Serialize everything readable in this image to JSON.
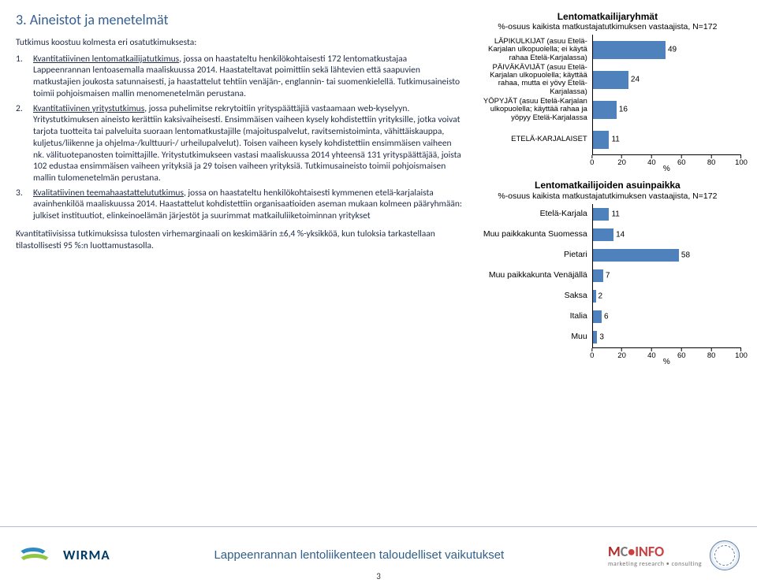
{
  "heading": "3. Aineistot ja menetelmät",
  "intro": "Tutkimus koostuu kolmesta eri osatutkimuksesta:",
  "items": [
    {
      "num": "1.",
      "title": "Kvantitatiivinen lentomatkailijatutkimus",
      "body": ", jossa on haastateltu henkilökohtaisesti 172 lentomatkustajaa Lappeenrannan lentoasemalla maaliskuussa 2014. Haastateltavat poimittiin sekä lähtevien että saapuvien matkustajien joukosta satunnaisesti, ja haastattelut tehtiin venäjän-, englannin- tai suomenkielellä. Tutkimusaineisto toimii pohjoismaisen mallin menomenetelmän perustana."
    },
    {
      "num": "2.",
      "title": "Kvantitatiivinen yritystutkimus",
      "body": ", jossa puhelimitse rekrytoitiin yrityspäättäjiä vastaamaan web-kyselyyn. Yritystutkimuksen aineisto kerättiin kaksivaiheisesti. Ensimmäisen vaiheen kysely kohdistettiin yrityksille, jotka voivat tarjota tuotteita tai palveluita suoraan lentomatkustajille (majoituspalvelut, ravitsemistoiminta, vähittäiskauppa, kuljetus/liikenne ja ohjelma-/kulttuuri-/ urheilupalvelut). Toisen vaiheen kysely kohdistettiin ensimmäisen vaiheen nk. välituotepanosten toimittajille. Yritystutkimukseen vastasi maaliskuussa 2014 yhteensä 131 yrityspäättäjää, joista 102 edustaa ensimmäisen vaiheen yrityksiä ja 29 toisen vaiheen yrityksiä. Tutkimusaineisto toimii pohjoismaisen mallin tulomenetelmän perustana."
    },
    {
      "num": "3.",
      "title": "Kvalitatiivinen teemahaastattelututkimus",
      "body": ", jossa on haastateltu henkilökohtaisesti kymmenen etelä-karjalaista avainhenkilöä maaliskuussa 2014. Haastattelut kohdistettiin organisaatioiden aseman mukaan kolmeen pääryhmään: julkiset instituutiot, elinkeinoelämän järjestöt ja suurimmat matkailuliiketoiminnan yritykset"
    }
  ],
  "margin_note": "Kvantitatiivisissa tutkimuksissa tulosten virhemarginaali on keskimäärin ±6,4  %-yksikköä, kun tuloksia tarkastellaan tilastollisesti 95 %:n luottamustasolla.",
  "chart1": {
    "title": "Lentomatkailijaryhmät",
    "subtitle": "%-osuus kaikista matkustajatutkimuksen vastaajista, N=172",
    "xmax": 100,
    "xticks": [
      0,
      20,
      40,
      60,
      80,
      100
    ],
    "xaxis_label": "%",
    "bar_color": "#4f81bd",
    "rows": [
      {
        "label": "LÄPIKULKIJAT (asuu Etelä-Karjalan ulkopuolella;  ei käytä rahaa Etelä-Karjalassa)",
        "value": 49
      },
      {
        "label": "PÄIVÄKÄVIJÄT (asuu Etelä-Karjalan ulkopuolella; käyttää rahaa, mutta ei yövy Etelä-Karjalassa)",
        "value": 24
      },
      {
        "label": "YÖPYJÄT (asuu Etelä-Karjalan ulkopuolella; käyttää rahaa ja yöpyy Etelä-Karjalassa",
        "value": 16
      },
      {
        "label": "ETELÄ-KARJALAISET",
        "value": 11
      }
    ]
  },
  "chart2": {
    "title": "Lentomatkailijoiden asuinpaikka",
    "subtitle": "%-osuus kaikista matkustajatutkimuksen vastaajista, N=172",
    "xmax": 100,
    "xticks": [
      0,
      20,
      40,
      60,
      80,
      100
    ],
    "xaxis_label": "%",
    "bar_color": "#4f81bd",
    "rows": [
      {
        "label": "Etelä-Karjala",
        "value": 11
      },
      {
        "label": "Muu paikkakunta Suomessa",
        "value": 14
      },
      {
        "label": "Pietari",
        "value": 58
      },
      {
        "label": "Muu paikkakunta Venäjällä",
        "value": 7
      },
      {
        "label": "Saksa",
        "value": 2
      },
      {
        "label": "Italia",
        "value": 6
      },
      {
        "label": "Muu",
        "value": 3
      }
    ]
  },
  "footer": {
    "wirma": "WIRMA",
    "title": "Lappeenrannan lentoliikenteen taloudelliset vaikutukset",
    "mc": {
      "m": "M",
      "c": "C",
      "info": "•INFO",
      "sub": "marketing research • consulting"
    },
    "page": "3"
  }
}
